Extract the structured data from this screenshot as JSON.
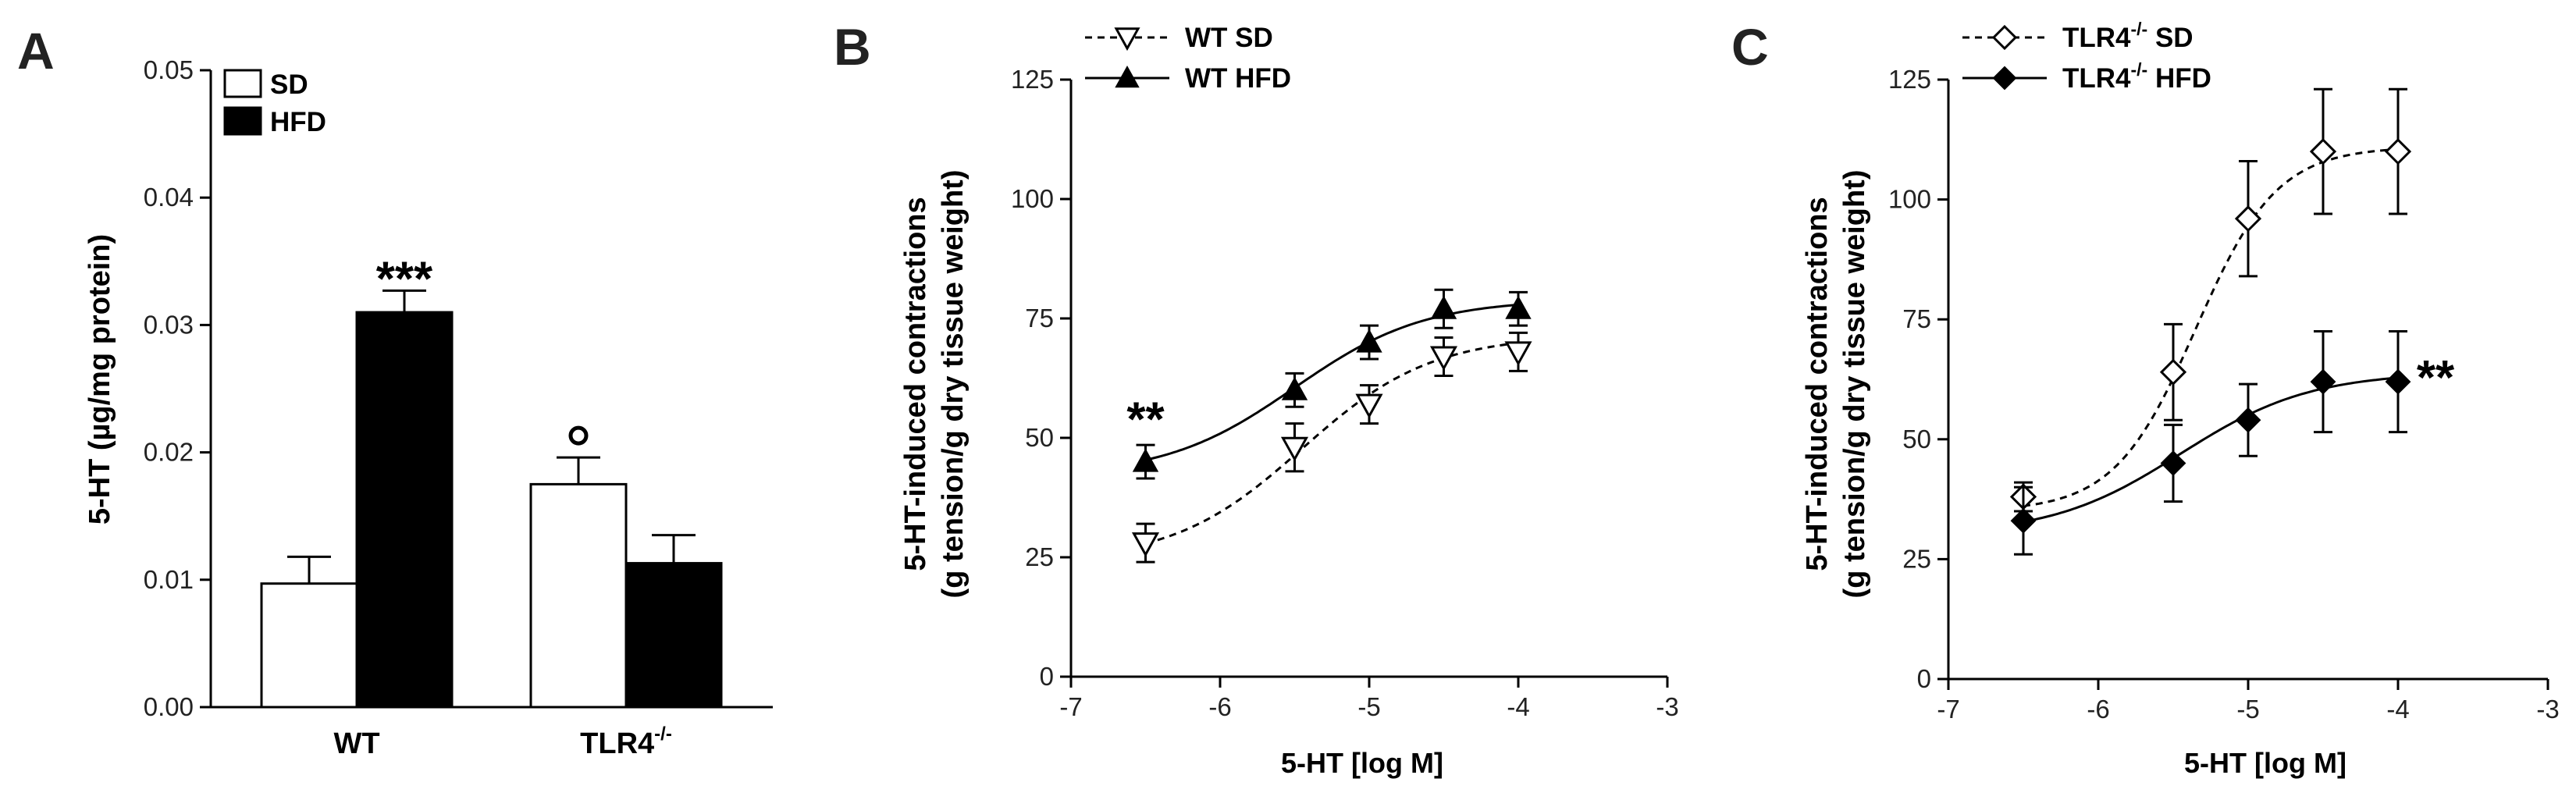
{
  "figure": {
    "panels": [
      "A",
      "B",
      "C"
    ]
  },
  "chart_data": [
    {
      "panel": "A",
      "type": "bar",
      "categories": [
        "WT",
        "TLR4"
      ],
      "category_superscripts": [
        "",
        "-/-"
      ],
      "series": [
        {
          "name": "SD",
          "values": [
            0.0097,
            0.0175
          ],
          "errors": [
            0.0021,
            0.0021
          ],
          "color": "#ffffff"
        },
        {
          "name": "HFD",
          "values": [
            0.031,
            0.0113
          ],
          "errors": [
            0.0017,
            0.0022
          ],
          "color": "#000000"
        }
      ],
      "ylabel": "5-HT (µg/mg protein)",
      "ylim": [
        0,
        0.05
      ],
      "yticks": [
        "0.00",
        "0.01",
        "0.02",
        "0.03",
        "0.04",
        "0.05"
      ],
      "legend": "top-left",
      "annotations": [
        {
          "text": "***",
          "category": 0,
          "series": 1
        },
        {
          "text": "o",
          "category": 1,
          "series": 0
        }
      ]
    },
    {
      "panel": "B",
      "type": "line",
      "xlabel": "5-HT [log M]",
      "ylabel_line1": "5-HT-induced contractions",
      "ylabel_line2": "(g tension/g dry tissue weight)",
      "xlim": [
        -7,
        -3
      ],
      "ylim": [
        0,
        125
      ],
      "xticks": [
        "-7",
        "-6",
        "-5",
        "-4",
        "-3"
      ],
      "yticks": [
        "0",
        "25",
        "50",
        "75",
        "100",
        "125"
      ],
      "legend": "top-left",
      "series": [
        {
          "name": "WT SD",
          "name_superscript": "",
          "marker": "triangle-down-open",
          "line": "dashed",
          "x": [
            -6.5,
            -5.5,
            -5.0,
            -4.5,
            -4.0
          ],
          "y": [
            28,
            48,
            57,
            67,
            68
          ],
          "errors": [
            4,
            5,
            4,
            4,
            4
          ],
          "fit": {
            "bottom": 24.0,
            "top": 71.5,
            "ec50": -5.45,
            "hill": 1.0
          }
        },
        {
          "name": "WT HFD",
          "name_superscript": "",
          "marker": "triangle-up-filled",
          "line": "solid",
          "x": [
            -6.5,
            -5.5,
            -5.0,
            -4.5,
            -4.0
          ],
          "y": [
            45,
            60,
            70,
            77,
            77
          ],
          "errors": [
            3.5,
            3.5,
            3.5,
            4,
            3.5
          ],
          "fit": {
            "bottom": 42.0,
            "top": 79.0,
            "ec50": -5.5,
            "hill": 1.0
          }
        }
      ],
      "annotations": [
        {
          "text": "**",
          "x": -6.5,
          "y": 54
        }
      ]
    },
    {
      "panel": "C",
      "type": "line",
      "xlabel": "5-HT [log M]",
      "ylabel_line1": "5-HT-induced contractions",
      "ylabel_line2": "(g tension/g dry tissue weight)",
      "xlim": [
        -7,
        -3
      ],
      "ylim": [
        0,
        125
      ],
      "xticks": [
        "-7",
        "-6",
        "-5",
        "-4",
        "-3"
      ],
      "yticks": [
        "0",
        "25",
        "50",
        "75",
        "100",
        "125"
      ],
      "legend": "top-left",
      "series": [
        {
          "name": "TLR4",
          "name_superscript": "-/-",
          "name_suffix": " SD",
          "marker": "diamond-open",
          "line": "dashed",
          "x": [
            -6.5,
            -5.5,
            -5.0,
            -4.5,
            -4.0
          ],
          "y": [
            38,
            64,
            96,
            110,
            110
          ],
          "errors": [
            3,
            10,
            12,
            13,
            13
          ],
          "fit": {
            "bottom": 35.0,
            "top": 111.0,
            "ec50": -5.35,
            "hill": 1.6
          }
        },
        {
          "name": "TLR4",
          "name_superscript": "-/-",
          "name_suffix": " HFD",
          "marker": "diamond-filled",
          "line": "solid",
          "x": [
            -6.5,
            -5.5,
            -5.0,
            -4.5,
            -4.0
          ],
          "y": [
            33,
            45,
            54,
            62,
            62
          ],
          "errors": [
            7,
            8,
            7.5,
            10.5,
            10.5
          ],
          "fit": {
            "bottom": 30.0,
            "top": 64.0,
            "ec50": -5.45,
            "hill": 1.0
          }
        }
      ],
      "annotations": [
        {
          "text": "**",
          "x": -3.75,
          "y": 63
        }
      ]
    }
  ]
}
